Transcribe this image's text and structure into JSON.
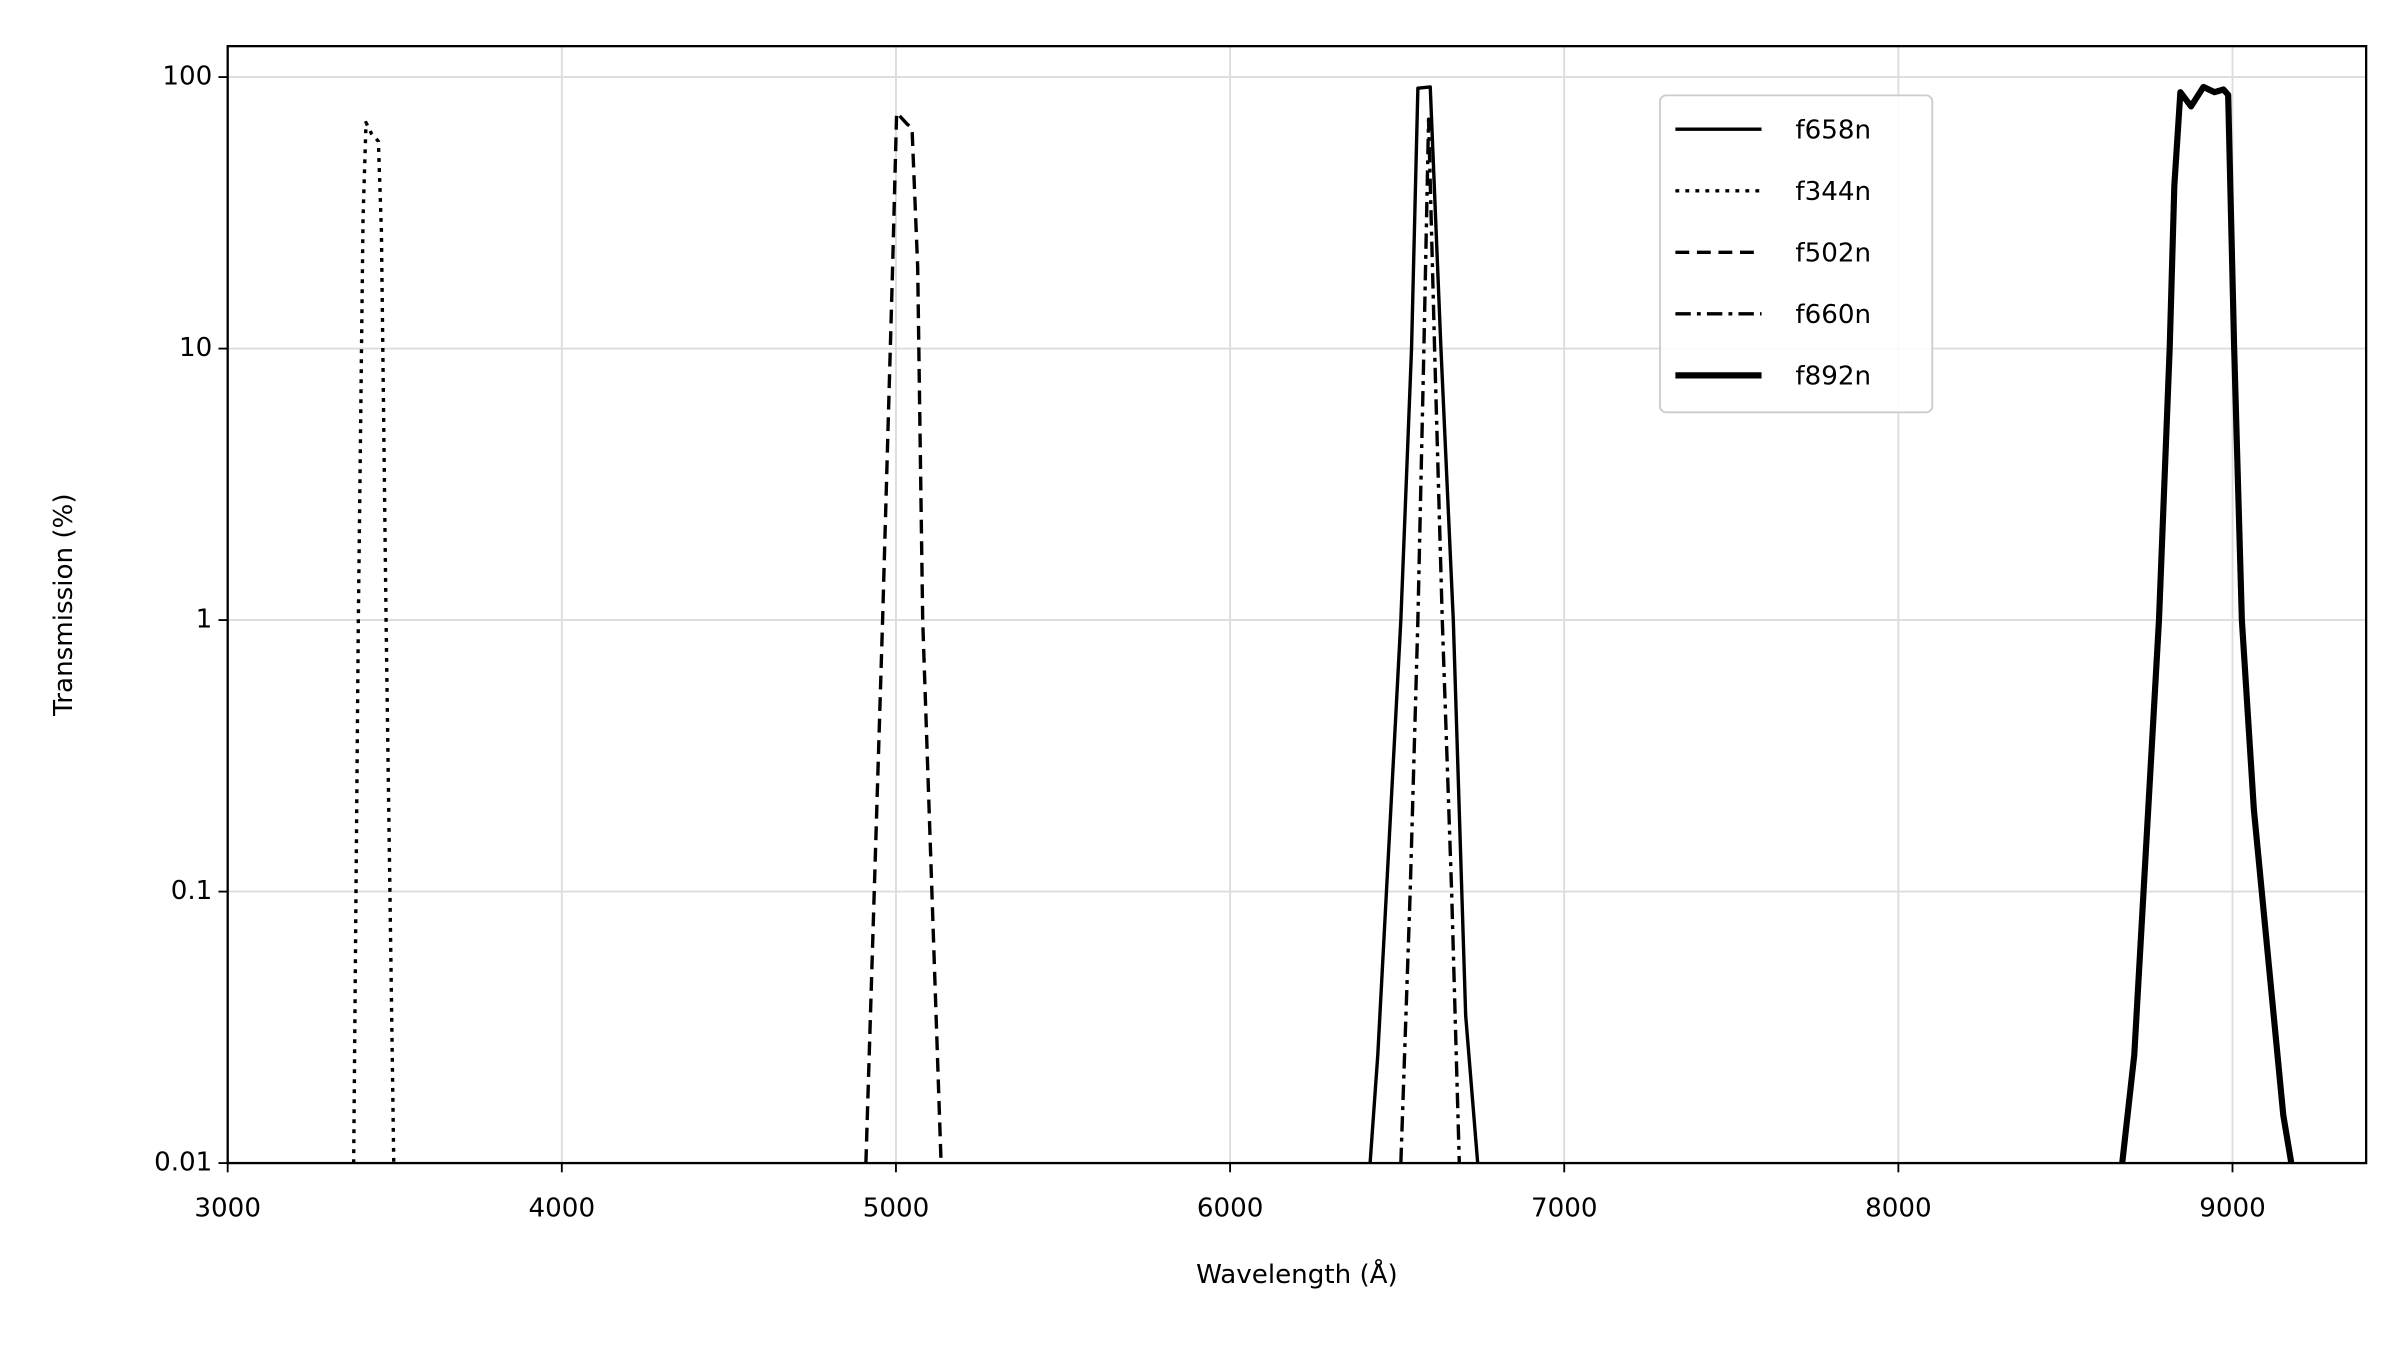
{
  "chart_data": {
    "type": "line",
    "x_label": "Wavelength (Å)",
    "y_label": "Transmission (%)",
    "xlim": [
      3000,
      9400
    ],
    "xticks": [
      3000,
      4000,
      5000,
      6000,
      7000,
      8000,
      9000
    ],
    "ylim": [
      0.01,
      130
    ],
    "yticks": [
      0.01,
      0.1,
      1,
      10,
      100
    ],
    "y_log": true,
    "grid": true,
    "series": [
      {
        "name": "f658n",
        "color": "#000000",
        "style": "solid",
        "linewidth": 2.2,
        "x": [
          6419,
          6442,
          6511,
          6543,
          6562,
          6599,
          6631,
          6668,
          6705,
          6741
        ],
        "values": [
          0.01,
          0.025,
          1,
          10,
          91,
          92,
          10,
          1,
          0.035,
          0.01
        ]
      },
      {
        "name": "f344n",
        "color": "#000000",
        "style": "dotted",
        "linewidth": 2.2,
        "x": [
          3377,
          3391,
          3405,
          3414,
          3430,
          3451,
          3460,
          3474,
          3497
        ],
        "values": [
          0.01,
          1,
          30,
          68,
          62,
          58,
          27,
          1,
          0.01
        ]
      },
      {
        "name": "f502n",
        "color": "#000000",
        "style": "dashed",
        "linewidth": 2.2,
        "x": [
          4910,
          4960,
          4990,
          5002,
          5034,
          5048,
          5065,
          5080,
          5135
        ],
        "values": [
          0.01,
          1,
          20,
          74,
          67,
          65,
          20,
          1,
          0.01
        ]
      },
      {
        "name": "f660n",
        "color": "#000000",
        "style": "dashdot",
        "linewidth": 2.2,
        "x": [
          6511,
          6539,
          6562,
          6580,
          6594,
          6612,
          6635,
          6663,
          6686
        ],
        "values": [
          0.01,
          0.1,
          1,
          10,
          70,
          10,
          1,
          0.1,
          0.01
        ]
      },
      {
        "name": "f892n",
        "color": "#000000",
        "style": "solid",
        "linewidth": 4,
        "x": [
          8670,
          8706,
          8780,
          8812,
          8826,
          8844,
          8876,
          8913,
          8946,
          8973,
          8987,
          9005,
          9028,
          9064,
          9152,
          9176
        ],
        "values": [
          0.01,
          0.025,
          1,
          10,
          40,
          88,
          78,
          92,
          88,
          90,
          86,
          10,
          1,
          0.2,
          0.015,
          0.01
        ]
      }
    ]
  }
}
